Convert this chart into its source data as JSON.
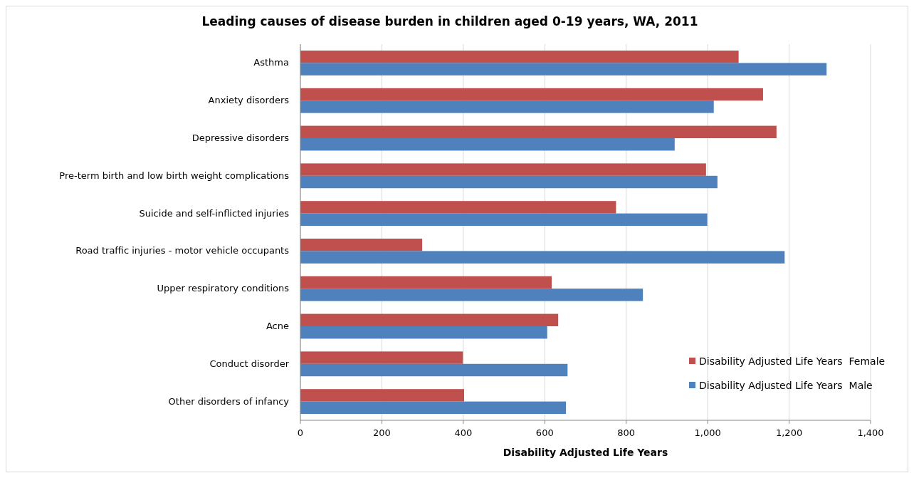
{
  "chart_data": {
    "type": "bar",
    "orientation": "horizontal",
    "title": "Leading causes of disease burden in children aged 0-19 years, WA, 2011",
    "xlabel": "Disability Adjusted Life Years",
    "categories": [
      "Asthma",
      "Anxiety disorders",
      "Depressive disorders",
      "Pre-term birth and low birth weight  complications",
      "Suicide and self-inflicted injuries",
      "Road traffic injuries - motor vehicle occupants",
      "Upper respiratory conditions",
      "Acne",
      "Conduct disorder",
      "Other disorders of infancy"
    ],
    "series": [
      {
        "name": "Disability Adjusted Life Years  Female",
        "color": "#c0504d",
        "values": [
          1076,
          1136,
          1169,
          996,
          775,
          299,
          617,
          633,
          399,
          402
        ]
      },
      {
        "name": "Disability Adjusted Life Years  Male",
        "color": "#4f81bd",
        "values": [
          1292,
          1015,
          919,
          1024,
          999,
          1189,
          841,
          606,
          656,
          652
        ]
      }
    ],
    "xlim": [
      0,
      1400
    ],
    "xticks": [
      0,
      200,
      400,
      600,
      800,
      {
        "value": 1000,
        "label": "1,000"
      },
      {
        "value": 1200,
        "label": "1,200"
      },
      {
        "value": 1400,
        "label": "1,400"
      }
    ],
    "grid": "x",
    "legend": "bottom right"
  }
}
